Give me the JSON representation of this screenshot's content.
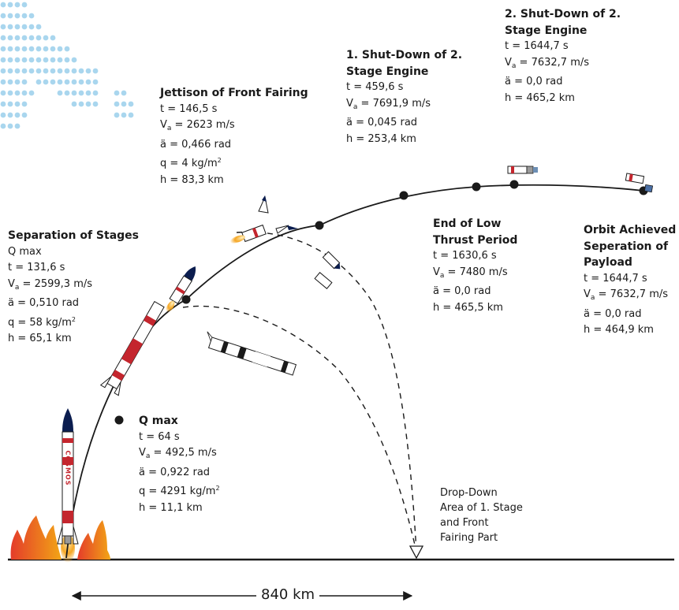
{
  "colors": {
    "ink": "#1a1a1a",
    "rocket_red": "#c4262e",
    "nose": "#0b1d4f",
    "flame_start": "#e43c2a",
    "flame_end": "#f2a516",
    "dots": "#a9d6ee"
  },
  "rocket_text": "COSMOS",
  "events": [
    {
      "id": "q-max",
      "title": "Q max",
      "lines": [
        {
          "pre": "t = 64 s"
        },
        {
          "pre": "V",
          "sub": "a",
          "post": " = 492,5 m/s"
        },
        {
          "pre": "ä = 0,922 rad"
        },
        {
          "pre": "q = 4291 kg/m",
          "sup": "2"
        },
        {
          "pre": "h = 11,1 km"
        }
      ]
    },
    {
      "id": "separation-of-stages",
      "title": "Separation of Stages",
      "lines": [
        {
          "pre": "Q max"
        },
        {
          "pre": "t = 131,6 s"
        },
        {
          "pre": "V",
          "sub": "a",
          "post": " = 2599,3 m/s"
        },
        {
          "pre": "ä = 0,510 rad"
        },
        {
          "pre": "q = 58 kg/m",
          "sup": "2"
        },
        {
          "pre": "h = 65,1 km"
        }
      ]
    },
    {
      "id": "jettison-front-fairing",
      "title": "Jettison of Front Fairing",
      "lines": [
        {
          "pre": "t = 146,5 s"
        },
        {
          "pre": "V",
          "sub": "a",
          "post": " = 2623 m/s"
        },
        {
          "pre": "ä = 0,466 rad"
        },
        {
          "pre": "q = 4 kg/m",
          "sup": "2"
        },
        {
          "pre": "h = 83,3 km"
        }
      ]
    },
    {
      "id": "first-shutdown",
      "title": "1. Shut-Down of 2. Stage Engine",
      "lines": [
        {
          "pre": "t = 459,6 s"
        },
        {
          "pre": "V",
          "sub": "a",
          "post": " = 7691,9 m/s"
        },
        {
          "pre": "ä = 0,045 rad"
        },
        {
          "pre": "h = 253,4 km"
        }
      ]
    },
    {
      "id": "second-shutdown",
      "title": "2. Shut-Down of 2. Stage Engine",
      "lines": [
        {
          "pre": "t = 1644,7 s"
        },
        {
          "pre": "V",
          "sub": "a",
          "post": " = 7632,7 m/s"
        },
        {
          "pre": "ä = 0,0 rad"
        },
        {
          "pre": "h = 465,2 km"
        }
      ]
    },
    {
      "id": "end-low-thrust",
      "title": "End of Low Thrust Period",
      "lines": [
        {
          "pre": "t = 1630,6 s"
        },
        {
          "pre": "V",
          "sub": "a",
          "post": " = 7480 m/s"
        },
        {
          "pre": "ä = 0,0 rad"
        },
        {
          "pre": "h = 465,5 km"
        }
      ]
    },
    {
      "id": "orbit-achieved",
      "title": "Orbit Achieved Seperation of Payload",
      "lines": [
        {
          "pre": "t = 1644,7 s"
        },
        {
          "pre": "V",
          "sub": "a",
          "post": " = 7632,7 m/s"
        },
        {
          "pre": "ä = 0,0 rad"
        },
        {
          "pre": "h = 464,9 km"
        }
      ]
    }
  ],
  "dropdown": {
    "line1": "Drop-Down",
    "line2": "Area of 1. Stage",
    "line3": "and Front",
    "line4": "Fairing Part"
  },
  "distance": {
    "label": "840 km"
  }
}
